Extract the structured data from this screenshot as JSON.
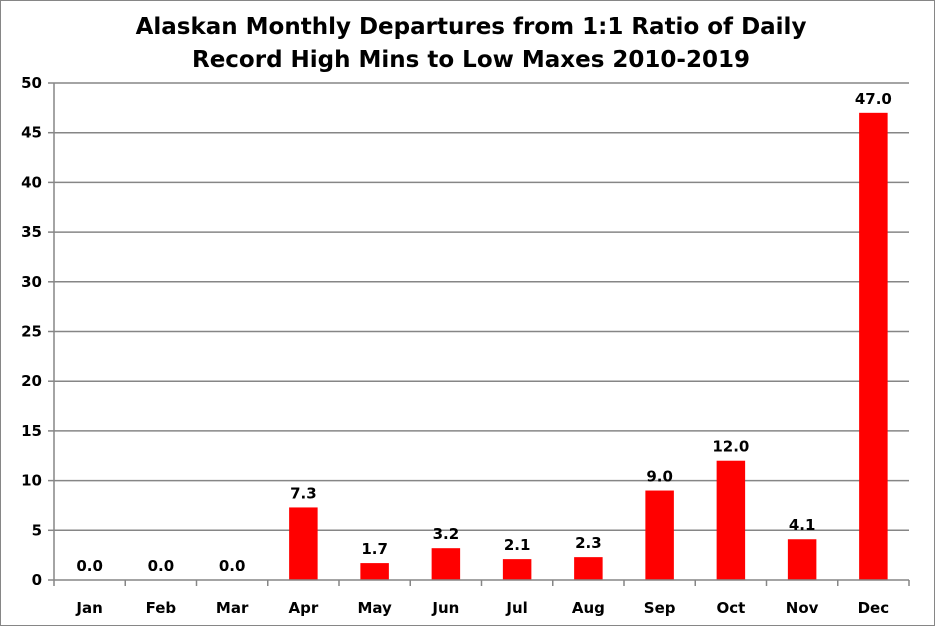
{
  "chart_data": {
    "type": "bar",
    "title_lines": [
      "Alaskan Monthly Departures from 1:1 Ratio of Daily",
      "Record High Mins to Low Maxes 2010-2019"
    ],
    "categories": [
      "Jan",
      "Feb",
      "Mar",
      "Apr",
      "May",
      "Jun",
      "Jul",
      "Aug",
      "Sep",
      "Oct",
      "Nov",
      "Dec"
    ],
    "values": [
      0.0,
      0.0,
      0.0,
      7.3,
      1.7,
      3.2,
      2.1,
      2.3,
      9.0,
      12.0,
      4.1,
      47.0
    ],
    "data_labels": [
      "0.0",
      "0.0",
      "0.0",
      "7.3",
      "1.7",
      "3.2",
      "2.1",
      "2.3",
      "9.0",
      "12.0",
      "4.1",
      "47.0"
    ],
    "ylim": [
      0,
      50
    ],
    "yticks": [
      0,
      5,
      10,
      15,
      20,
      25,
      30,
      35,
      40,
      45,
      50
    ],
    "xlabel": "",
    "ylabel": "",
    "grid": true,
    "legend": "none",
    "colors": {
      "bar": "#ff0000",
      "grid": "#868686",
      "axis": "#868686",
      "text": "#000000"
    }
  }
}
